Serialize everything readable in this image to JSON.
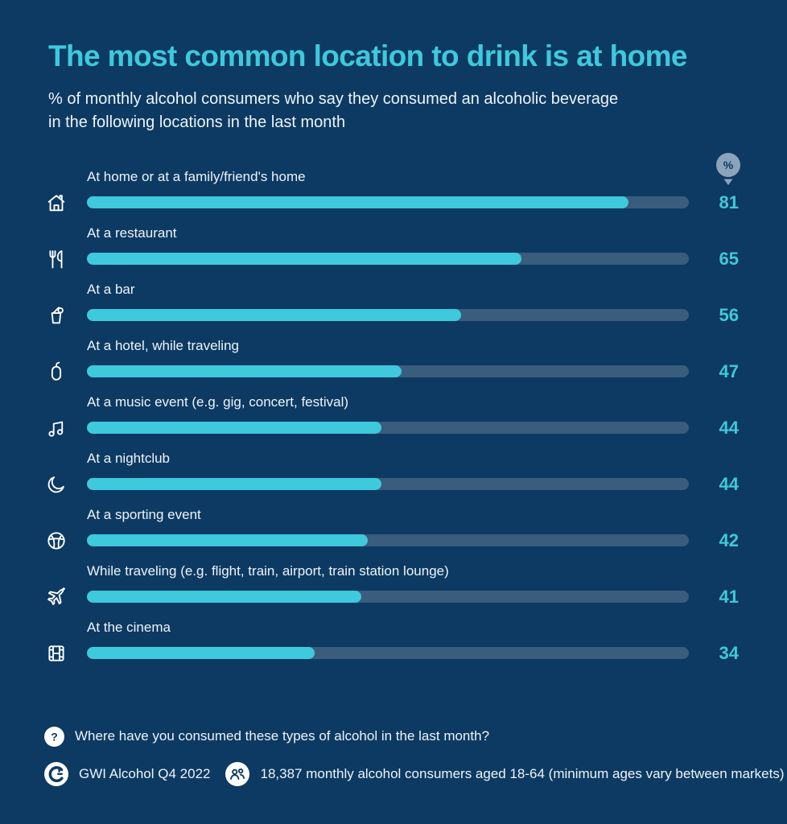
{
  "page": {
    "background_color": "#0D3A62",
    "accent_color": "#3EC9DD",
    "track_color": "#3A5C7D",
    "badge_color": "#8CA4BB"
  },
  "chart_data": {
    "type": "bar",
    "orientation": "horizontal",
    "title": "The most common location to drink is at home",
    "subtitle_lines": [
      "% of monthly alcohol consumers who say they consumed an alcoholic beverage",
      "in the following locations in the last month"
    ],
    "unit": "%",
    "categories": [
      "At home or at a family/friend's home",
      "At a restaurant",
      "At a bar",
      "At a hotel, while traveling",
      "At a music event (e.g. gig, concert, festival)",
      "At a nightclub",
      "At a sporting event",
      "While traveling (e.g. flight, train, airport, train station lounge)",
      "At the cinema"
    ],
    "values": [
      81,
      65,
      56,
      47,
      44,
      44,
      42,
      41,
      34
    ],
    "icons": [
      "home-icon",
      "restaurant-icon",
      "bar-glass-icon",
      "hotel-hanger-icon",
      "music-notes-icon",
      "moon-icon",
      "basketball-icon",
      "plane-icon",
      "film-icon"
    ],
    "xlim": [
      0,
      90
    ],
    "bar_color": "#3EC9DD",
    "track_color": "#3A5C7D",
    "value_label_color": "#3EC9DD",
    "grid": false,
    "legend": false
  },
  "footer": {
    "question_text": "Where have you consumed these types of alcohol in the last month?",
    "source_text": "GWI Alcohol Q4 2022",
    "audience_text": "18,387 monthly alcohol consumers aged 18-64 (minimum ages vary between markets)"
  }
}
